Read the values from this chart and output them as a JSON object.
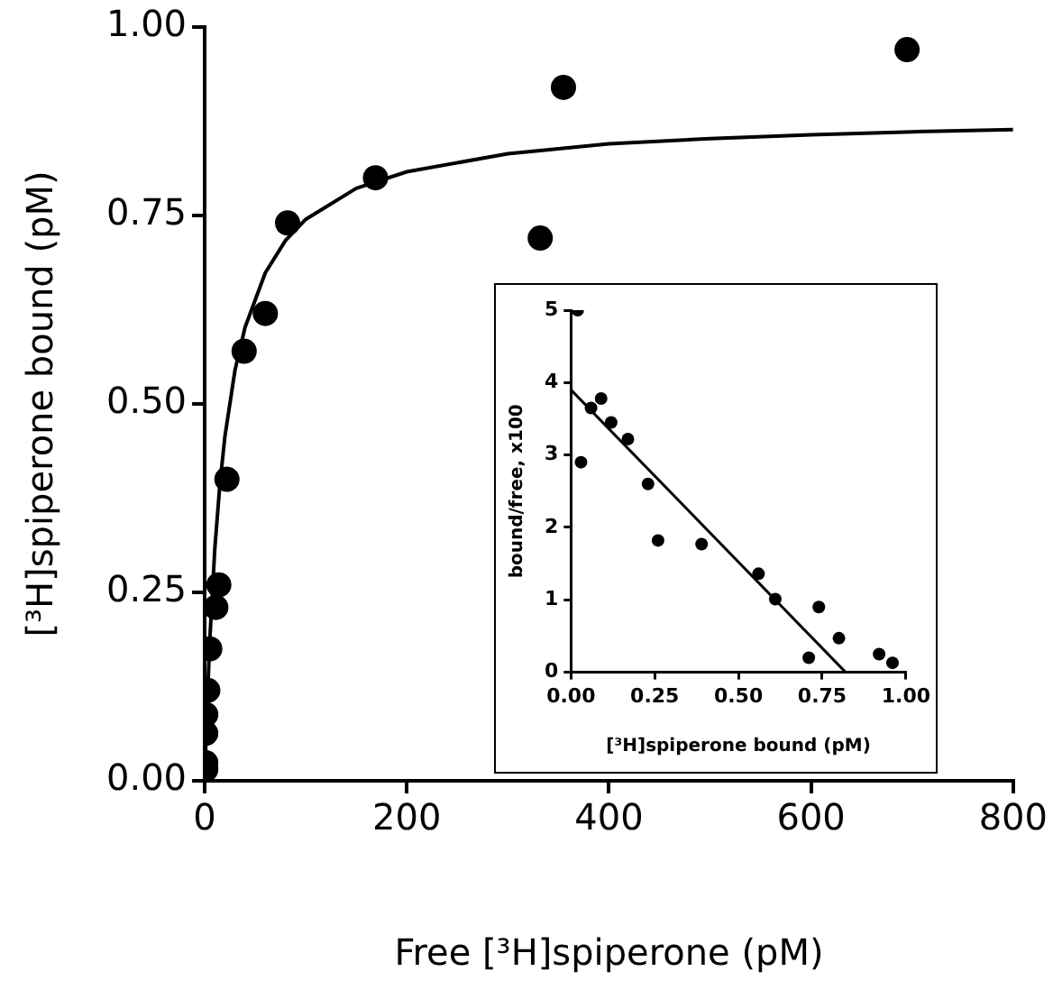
{
  "chart_data": [
    {
      "type": "scatter",
      "xlabel": "Free [³H]spiperone (pM)",
      "ylabel": "[³H]spiperone bound (pM)",
      "xlim": [
        0,
        800
      ],
      "ylim": [
        0,
        1
      ],
      "xticks": [
        0,
        200,
        400,
        600,
        800
      ],
      "yticks": [
        {
          "value": 0,
          "label": "0.00"
        },
        {
          "value": 0.25,
          "label": "0.25"
        },
        {
          "value": 0.5,
          "label": "0.50"
        },
        {
          "value": 0.75,
          "label": "0.75"
        },
        {
          "value": 1,
          "label": "1.00"
        }
      ],
      "grid": false,
      "series": [
        {
          "marker": "circle",
          "color": "#000000",
          "x": [
            1,
            1,
            1,
            1,
            3,
            5,
            11,
            14,
            22,
            39,
            60,
            82,
            169,
            332,
            355,
            695
          ],
          "values": [
            0.015,
            0.024,
            0.063,
            0.088,
            0.12,
            0.175,
            0.23,
            0.26,
            0.4,
            0.57,
            0.62,
            0.74,
            0.8,
            0.72,
            0.92,
            0.97
          ]
        },
        {
          "type": "line",
          "marker": "none",
          "color": "#000000",
          "x": [
            0,
            2,
            5,
            10,
            15,
            20,
            30,
            40,
            60,
            80,
            100,
            150,
            200,
            300,
            400,
            500,
            600,
            700,
            800
          ],
          "values": [
            0,
            0.085,
            0.186,
            0.308,
            0.393,
            0.457,
            0.545,
            0.602,
            0.674,
            0.717,
            0.745,
            0.786,
            0.808,
            0.832,
            0.845,
            0.852,
            0.857,
            0.861,
            0.864
          ]
        }
      ]
    },
    {
      "type": "scatter",
      "xlabel": "[³H]spiperone bound (pM)",
      "ylabel": "bound/free, x100",
      "xlim": [
        0,
        1
      ],
      "ylim": [
        0,
        5
      ],
      "xticks": [
        {
          "value": 0,
          "label": "0.00"
        },
        {
          "value": 0.25,
          "label": "0.25"
        },
        {
          "value": 0.5,
          "label": "0.50"
        },
        {
          "value": 0.75,
          "label": "0.75"
        },
        {
          "value": 1,
          "label": "1.00"
        }
      ],
      "yticks": [
        0,
        1,
        2,
        3,
        4,
        5
      ],
      "grid": false,
      "series": [
        {
          "marker": "circle",
          "color": "#000000",
          "x": [
            0.02,
            0.03,
            0.06,
            0.09,
            0.12,
            0.17,
            0.23,
            0.26,
            0.39,
            0.56,
            0.61,
            0.71,
            0.74,
            0.8,
            0.92,
            0.96
          ],
          "values": [
            5,
            2.9,
            3.65,
            3.78,
            3.45,
            3.22,
            2.6,
            1.82,
            1.77,
            1.36,
            1.01,
            0.2,
            0.9,
            0.47,
            0.25,
            0.13
          ]
        },
        {
          "type": "line",
          "marker": "none",
          "color": "#000000",
          "x": [
            0,
            0.82
          ],
          "values": [
            3.9,
            0
          ]
        }
      ]
    }
  ]
}
